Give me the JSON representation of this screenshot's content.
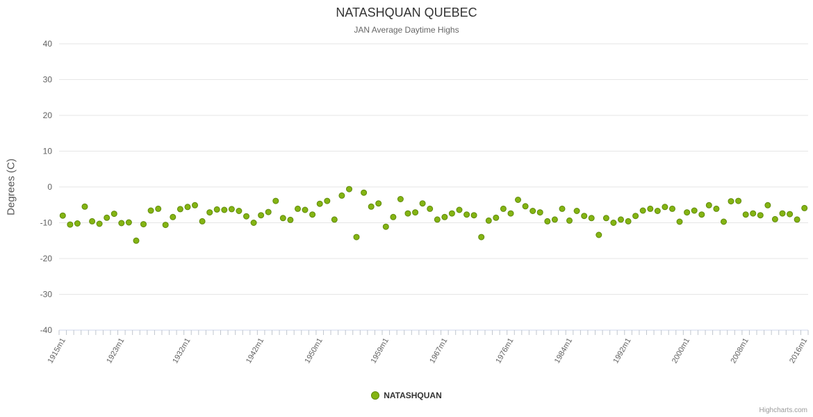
{
  "chart": {
    "title": "NATASHQUAN QUEBEC",
    "subtitle": "JAN Average Daytime Highs",
    "y_axis_title": "Degrees (C)"
  },
  "legend": {
    "label": "NATASHQUAN"
  },
  "credits": {
    "label": "Highcharts.com"
  },
  "chart_data": {
    "type": "scatter",
    "title": "NATASHQUAN QUEBEC",
    "subtitle": "JAN Average Daytime Highs",
    "xlabel": "",
    "ylabel": "Degrees (C)",
    "ylim": [
      -40,
      40
    ],
    "y_ticks": [
      40,
      30,
      20,
      10,
      0,
      -10,
      -20,
      -30,
      -40
    ],
    "grid": true,
    "legend_position": "bottom",
    "x_start_year": 1915,
    "x_suffix": "m1",
    "x_tick_labels": [
      "1915m1",
      "1923m1",
      "1932m1",
      "1942m1",
      "1950m1",
      "1959m1",
      "1967m1",
      "1976m1",
      "1984m1",
      "1992m1",
      "2000m1",
      "2008m1",
      "2016m1"
    ],
    "colors": {
      "point_fill": "#84b413",
      "point_border": "#5f8a0b",
      "grid_line": "#e6e6e6",
      "axis_line": "#ccd6eb",
      "tick": "#c0c6ce",
      "label": "#606060"
    },
    "series": [
      {
        "name": "NATASHQUAN",
        "values": [
          -8.0,
          -10.5,
          -10.2,
          -5.5,
          -9.6,
          -10.3,
          -8.6,
          -7.5,
          -10.1,
          -9.9,
          -15.0,
          -10.4,
          -6.6,
          -6.1,
          -10.6,
          -8.4,
          -6.2,
          -5.6,
          -5.1,
          -9.6,
          -7.1,
          -6.3,
          -6.4,
          -6.2,
          -6.7,
          -8.2,
          -10.0,
          -7.9,
          -7.0,
          -3.9,
          -8.7,
          -9.2,
          -6.1,
          -6.4,
          -7.7,
          -4.7,
          -3.9,
          -9.1,
          -2.4,
          -0.6,
          -14.0,
          -1.6,
          -5.5,
          -4.6,
          -11.1,
          -8.4,
          -3.4,
          -7.4,
          -7.1,
          -4.6,
          -6.1,
          -9.1,
          -8.4,
          -7.4,
          -6.4,
          -7.7,
          -7.9,
          -14.0,
          -9.4,
          -8.6,
          -6.1,
          -7.4,
          -3.6,
          -5.4,
          -6.7,
          -7.1,
          -9.6,
          -9.1,
          -6.1,
          -9.4,
          -6.7,
          -8.1,
          -8.7,
          -13.4,
          -8.7,
          -10.0,
          -9.1,
          -9.6,
          -8.1,
          -6.6,
          -6.1,
          -6.7,
          -5.6,
          -6.1,
          -9.7,
          -7.1,
          -6.6,
          -7.7,
          -5.1,
          -6.1,
          -9.7,
          -4.0,
          -3.9,
          -7.7,
          -7.4,
          -7.9,
          -5.1,
          -9.0,
          -7.4,
          -7.6,
          -9.1,
          -5.9
        ]
      }
    ]
  }
}
